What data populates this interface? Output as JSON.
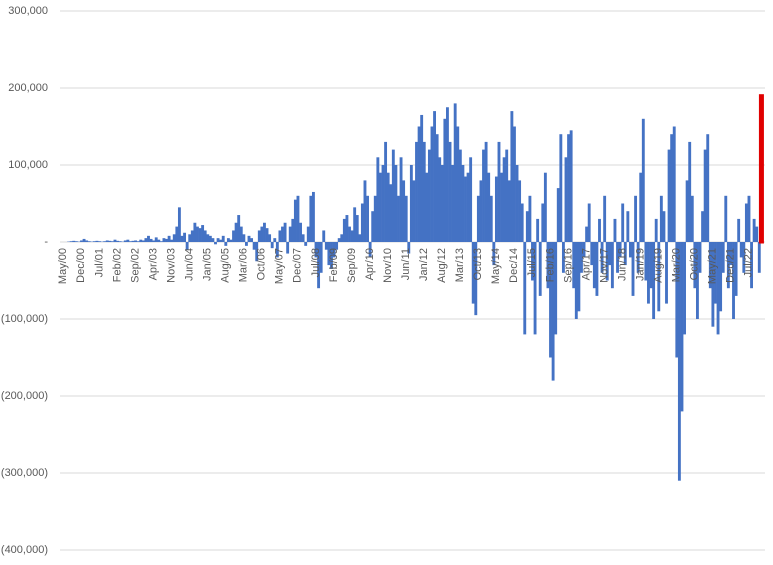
{
  "chart_data": {
    "type": "bar",
    "categories": [
      "May/00",
      null,
      null,
      null,
      null,
      null,
      null,
      "Dec/00",
      null,
      null,
      null,
      null,
      null,
      null,
      "Jul/01",
      null,
      null,
      null,
      null,
      null,
      null,
      "Feb/02",
      null,
      null,
      null,
      null,
      null,
      null,
      "Sep/02",
      null,
      null,
      null,
      null,
      null,
      null,
      "Apr/03",
      null,
      null,
      null,
      null,
      null,
      null,
      "Nov/03",
      null,
      null,
      null,
      null,
      null,
      null,
      "Jun/04",
      null,
      null,
      null,
      null,
      null,
      null,
      "Jan/05",
      null,
      null,
      null,
      null,
      null,
      null,
      "Aug/05",
      null,
      null,
      null,
      null,
      null,
      null,
      "Mar/06",
      null,
      null,
      null,
      null,
      null,
      null,
      "Oct/06",
      null,
      null,
      null,
      null,
      null,
      null,
      "May/07",
      null,
      null,
      null,
      null,
      null,
      null,
      "Dec/07",
      null,
      null,
      null,
      null,
      null,
      null,
      "Jul/08",
      null,
      null,
      null,
      null,
      null,
      null,
      "Feb/09",
      null,
      null,
      null,
      null,
      null,
      null,
      "Sep/09",
      null,
      null,
      null,
      null,
      null,
      null,
      "Apr/10",
      null,
      null,
      null,
      null,
      null,
      null,
      "Nov/10",
      null,
      null,
      null,
      null,
      null,
      null,
      "Jun/11",
      null,
      null,
      null,
      null,
      null,
      null,
      "Jan/12",
      null,
      null,
      null,
      null,
      null,
      null,
      "Aug/12",
      null,
      null,
      null,
      null,
      null,
      null,
      "Mar/13",
      null,
      null,
      null,
      null,
      null,
      null,
      "Oct/13",
      null,
      null,
      null,
      null,
      null,
      null,
      "May/14",
      null,
      null,
      null,
      null,
      null,
      null,
      "Dec/14",
      null,
      null,
      null,
      null,
      null,
      null,
      "Jul/15",
      null,
      null,
      null,
      null,
      null,
      null,
      "Feb/16",
      null,
      null,
      null,
      null,
      null,
      null,
      "Sep/16",
      null,
      null,
      null,
      null,
      null,
      null,
      "Apr/17",
      null,
      null,
      null,
      null,
      null,
      null,
      "Nov/17",
      null,
      null,
      null,
      null,
      null,
      null,
      "Jun/18",
      null,
      null,
      null,
      null,
      null,
      null,
      "Jan/19",
      null,
      null,
      null,
      null,
      null,
      null,
      "Aug/19",
      null,
      null,
      null,
      null,
      null,
      null,
      "Mar/20",
      null,
      null,
      null,
      null,
      null,
      null,
      "Oct/20",
      null,
      null,
      null,
      null,
      null,
      null,
      "May/21",
      null,
      null,
      null,
      null,
      null,
      null,
      "Dec/21",
      null,
      null,
      null,
      null,
      null,
      null,
      "Jul/22",
      null,
      null,
      null,
      null,
      null
    ],
    "values": [
      0,
      0,
      500,
      1000,
      1500,
      1000,
      500,
      2000,
      4000,
      2000,
      1000,
      500,
      1000,
      1500,
      1000,
      500,
      1000,
      2000,
      1500,
      1000,
      3000,
      1500,
      1000,
      500,
      2000,
      3000,
      1000,
      1500,
      2000,
      1000,
      3000,
      2000,
      5000,
      8000,
      4000,
      2000,
      6000,
      3000,
      1000,
      5000,
      4000,
      8000,
      3000,
      10000,
      20000,
      45000,
      8000,
      12000,
      -10000,
      10000,
      15000,
      25000,
      20000,
      18000,
      22000,
      15000,
      10000,
      8000,
      5000,
      -3000,
      5000,
      3000,
      8000,
      -5000,
      5000,
      3000,
      15000,
      25000,
      35000,
      20000,
      10000,
      -5000,
      8000,
      5000,
      -10000,
      -25000,
      15000,
      20000,
      25000,
      18000,
      10000,
      -8000,
      5000,
      -20000,
      15000,
      20000,
      25000,
      -15000,
      20000,
      30000,
      55000,
      60000,
      25000,
      10000,
      -5000,
      20000,
      60000,
      65000,
      -20000,
      -60000,
      -40000,
      15000,
      -10000,
      -30000,
      -35000,
      -20000,
      -10000,
      5000,
      10000,
      30000,
      35000,
      20000,
      15000,
      45000,
      35000,
      10000,
      50000,
      80000,
      60000,
      -20000,
      40000,
      60000,
      110000,
      90000,
      100000,
      130000,
      90000,
      75000,
      120000,
      100000,
      60000,
      110000,
      80000,
      60000,
      -15000,
      100000,
      80000,
      130000,
      150000,
      165000,
      130000,
      90000,
      120000,
      150000,
      170000,
      140000,
      110000,
      100000,
      160000,
      175000,
      130000,
      100000,
      180000,
      150000,
      120000,
      100000,
      85000,
      90000,
      110000,
      -80000,
      -95000,
      60000,
      80000,
      120000,
      130000,
      90000,
      60000,
      -30000,
      85000,
      130000,
      90000,
      110000,
      120000,
      80000,
      170000,
      150000,
      100000,
      80000,
      50000,
      -120000,
      40000,
      60000,
      -50000,
      -120000,
      30000,
      -70000,
      50000,
      90000,
      -60000,
      -150000,
      -180000,
      -120000,
      70000,
      140000,
      -40000,
      110000,
      140000,
      145000,
      -60000,
      -100000,
      -90000,
      -40000,
      -20000,
      20000,
      50000,
      -30000,
      -60000,
      -70000,
      30000,
      -40000,
      60000,
      -50000,
      -30000,
      -60000,
      30000,
      -40000,
      -20000,
      50000,
      -30000,
      40000,
      -20000,
      -70000,
      60000,
      -40000,
      90000,
      160000,
      -50000,
      -80000,
      -60000,
      -100000,
      30000,
      -90000,
      60000,
      40000,
      -80000,
      120000,
      140000,
      150000,
      -150000,
      -310000,
      -220000,
      -120000,
      80000,
      130000,
      60000,
      -60000,
      -100000,
      -40000,
      40000,
      120000,
      140000,
      -60000,
      -110000,
      -80000,
      -120000,
      -90000,
      -40000,
      60000,
      -60000,
      -30000,
      -100000,
      -70000,
      30000,
      -20000,
      -40000,
      50000,
      60000,
      -60000,
      30000,
      20000,
      -40000,
      190000
    ],
    "color": "#4472c4",
    "highlight": {
      "index": 271,
      "color": "#e00000"
    },
    "ylim": [
      -400000,
      300000
    ],
    "yticks": [
      {
        "value": -400000,
        "label": "(400,000)"
      },
      {
        "value": -300000,
        "label": "(300,000)"
      },
      {
        "value": -200000,
        "label": "(200,000)"
      },
      {
        "value": -100000,
        "label": "(100,000)"
      },
      {
        "value": 0,
        "label": "-"
      },
      {
        "value": 100000,
        "label": "100,000"
      },
      {
        "value": 200000,
        "label": "200,000"
      },
      {
        "value": 300000,
        "label": "300,000"
      }
    ],
    "grid": true
  }
}
